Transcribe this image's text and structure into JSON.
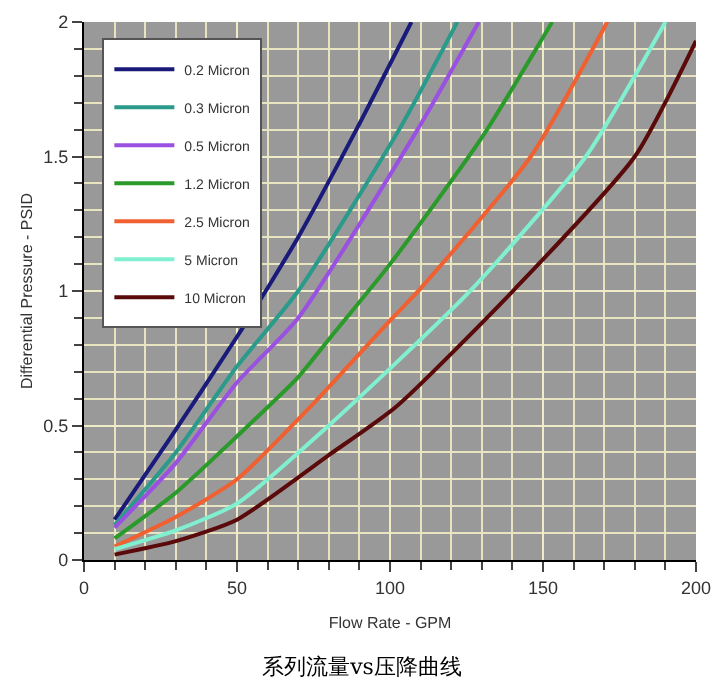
{
  "chart_data": {
    "type": "line",
    "title": "系列流量vs压降曲线",
    "xlabel": "Flow Rate - GPM",
    "ylabel": "Differential Pressure - PSID",
    "xlim": [
      0,
      200
    ],
    "xticks": [
      0,
      50,
      100,
      150,
      200
    ],
    "ylim": [
      0,
      2
    ],
    "yticks": [
      0,
      0.5,
      1,
      1.5,
      2
    ],
    "grid": true,
    "legend": "top left",
    "marker": "none",
    "line_style": "solid",
    "series": [
      {
        "name": "0.2 Micron",
        "color": "#1a1a7a",
        "x": [
          10,
          28,
          50,
          61,
          70,
          89,
          107
        ],
        "values": [
          0.15,
          0.45,
          0.83,
          1.03,
          1.2,
          1.6,
          2.0
        ]
      },
      {
        "name": "0.3 Micron",
        "color": "#2a9a8a",
        "x": [
          10,
          30,
          50,
          70,
          103,
          122
        ],
        "values": [
          0.13,
          0.4,
          0.72,
          1.0,
          1.6,
          2.0
        ]
      },
      {
        "name": "0.5 Micron",
        "color": "#9a50e0",
        "x": [
          10,
          30,
          50,
          70,
          109,
          129
        ],
        "values": [
          0.12,
          0.36,
          0.66,
          0.9,
          1.6,
          2.0
        ]
      },
      {
        "name": "1.2 Micron",
        "color": "#2a9a2a",
        "x": [
          10,
          30,
          50,
          70,
          80,
          100,
          130,
          153
        ],
        "values": [
          0.08,
          0.25,
          0.46,
          0.68,
          0.82,
          1.1,
          1.57,
          2.0
        ]
      },
      {
        "name": "2.5 Micron",
        "color": "#f06030",
        "x": [
          10,
          30,
          50,
          74,
          100,
          110,
          146,
          171
        ],
        "values": [
          0.05,
          0.16,
          0.3,
          0.57,
          0.89,
          1.01,
          1.5,
          2.0
        ]
      },
      {
        "name": "5 Micron",
        "color": "#80f0d0",
        "x": [
          10,
          30,
          50,
          80,
          127,
          164,
          190
        ],
        "values": [
          0.04,
          0.11,
          0.21,
          0.5,
          1.01,
          1.5,
          2.0
        ]
      },
      {
        "name": "10 Micron",
        "color": "#5a0a0a",
        "x": [
          10,
          30,
          50,
          80,
          102,
          141,
          180,
          200
        ],
        "values": [
          0.02,
          0.07,
          0.15,
          0.39,
          0.57,
          1.01,
          1.5,
          1.93
        ]
      }
    ]
  }
}
